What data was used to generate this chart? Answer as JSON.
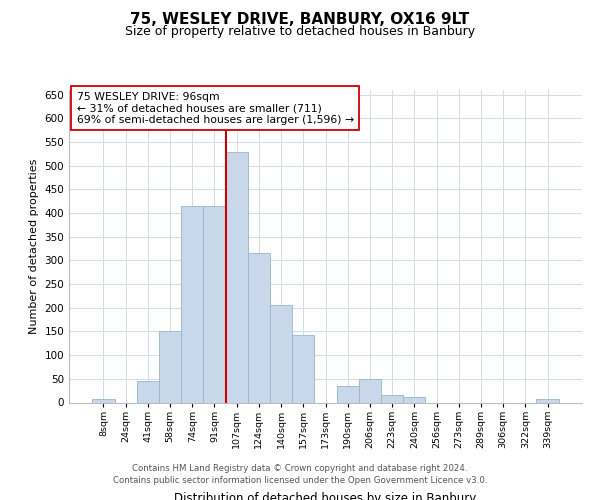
{
  "title": "75, WESLEY DRIVE, BANBURY, OX16 9LT",
  "subtitle": "Size of property relative to detached houses in Banbury",
  "xlabel": "Distribution of detached houses by size in Banbury",
  "ylabel": "Number of detached properties",
  "bar_color": "#c8d8ea",
  "bar_edge_color": "#9ab4cc",
  "bin_labels": [
    "8sqm",
    "24sqm",
    "41sqm",
    "58sqm",
    "74sqm",
    "91sqm",
    "107sqm",
    "124sqm",
    "140sqm",
    "157sqm",
    "173sqm",
    "190sqm",
    "206sqm",
    "223sqm",
    "240sqm",
    "256sqm",
    "273sqm",
    "289sqm",
    "306sqm",
    "322sqm",
    "339sqm"
  ],
  "bar_heights": [
    8,
    0,
    45,
    150,
    415,
    415,
    530,
    315,
    205,
    142,
    0,
    35,
    50,
    15,
    12,
    0,
    0,
    0,
    0,
    0,
    7
  ],
  "ylim": [
    0,
    660
  ],
  "yticks": [
    0,
    50,
    100,
    150,
    200,
    250,
    300,
    350,
    400,
    450,
    500,
    550,
    600,
    650
  ],
  "vline_bin_index": 5,
  "property_line_label": "75 WESLEY DRIVE: 96sqm",
  "annotation_line1": "← 31% of detached houses are smaller (711)",
  "annotation_line2": "69% of semi-detached houses are larger (1,596) →",
  "vline_color": "#cc0000",
  "annotation_box_color": "#ffffff",
  "annotation_box_edge": "#cc0000",
  "footer_line1": "Contains HM Land Registry data © Crown copyright and database right 2024.",
  "footer_line2": "Contains public sector information licensed under the Open Government Licence v3.0.",
  "background_color": "#ffffff",
  "grid_color": "#d0dce8"
}
